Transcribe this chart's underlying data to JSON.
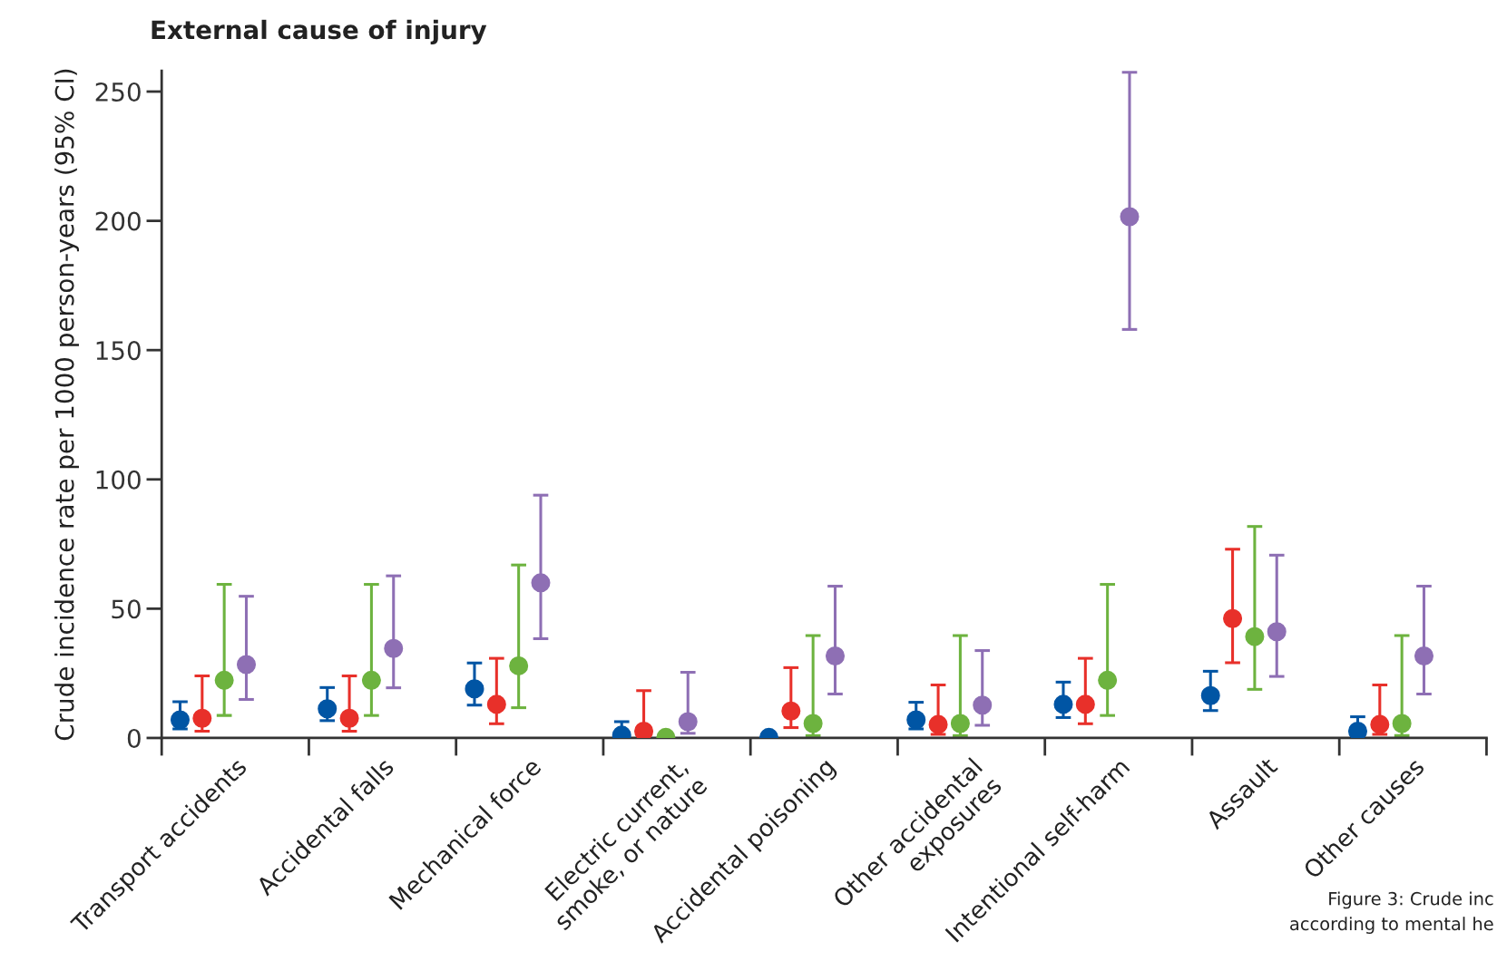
{
  "chart_data": {
    "type": "scatter",
    "title": "External cause of injury",
    "ylabel": "Crude incidence rate per 1000 person-years (95% CI)",
    "categories": [
      "Transport accidents",
      "Accidental falls",
      "Mechanical force",
      "Electric current,\nsmoke, or nature",
      "Accidental poisoning",
      "Other accidental\nexposures",
      "Intentional self-harm",
      "Assault",
      "Other causes"
    ],
    "series": [
      {
        "color": "#0055a4",
        "values": [
          7.0,
          11.3,
          19.0,
          1.1,
          0.2,
          7.0,
          13.0,
          16.4,
          2.6
        ],
        "errors": [
          [
            3.5,
            14.0
          ],
          [
            6.7,
            19.5
          ],
          [
            12.7,
            29.0
          ],
          [
            0.3,
            6.3
          ],
          null,
          [
            3.5,
            13.8
          ],
          [
            7.9,
            21.6
          ],
          [
            10.6,
            25.8
          ],
          [
            0.5,
            8.2
          ]
        ]
      },
      {
        "color": "#e8302a",
        "values": [
          7.6,
          7.6,
          13.0,
          2.6,
          10.4,
          5.2,
          13.0,
          46.2,
          5.2
        ],
        "errors": [
          [
            2.6,
            24.0
          ],
          [
            2.6,
            24.0
          ],
          [
            5.5,
            30.8
          ],
          [
            0.5,
            18.3
          ],
          [
            4.0,
            27.2
          ],
          [
            1.4,
            20.5
          ],
          [
            5.5,
            30.8
          ],
          [
            29.1,
            73.0
          ],
          [
            1.4,
            20.5
          ]
        ]
      },
      {
        "color": "#6db33f",
        "values": [
          22.3,
          22.3,
          27.9,
          0.2,
          5.6,
          5.6,
          22.3,
          39.2,
          5.6
        ],
        "errors": [
          [
            8.7,
            59.4
          ],
          [
            8.7,
            59.4
          ],
          [
            11.7,
            66.9
          ],
          null,
          [
            0.9,
            39.6
          ],
          [
            0.9,
            39.6
          ],
          [
            8.7,
            59.4
          ],
          [
            18.8,
            81.8
          ],
          [
            0.9,
            39.6
          ]
        ]
      },
      {
        "color": "#8e6fb4",
        "values": [
          28.4,
          34.6,
          60.0,
          6.3,
          31.7,
          12.7,
          201.6,
          41.1,
          31.7
        ],
        "errors": [
          [
            14.9,
            54.8
          ],
          [
            19.4,
            62.7
          ],
          [
            38.4,
            93.9
          ],
          [
            1.8,
            25.4
          ],
          [
            17.0,
            58.7
          ],
          [
            4.9,
            33.8
          ],
          [
            158.0,
            257.5
          ],
          [
            23.8,
            70.7
          ],
          [
            17.0,
            58.7
          ]
        ]
      }
    ],
    "ylim": [
      0,
      258
    ],
    "yticks": [
      0,
      50,
      100,
      150,
      200,
      250
    ],
    "grid": false,
    "marker": "circle",
    "annotations": [
      "Figure 3: Crude inc\naccording to mental he"
    ]
  }
}
